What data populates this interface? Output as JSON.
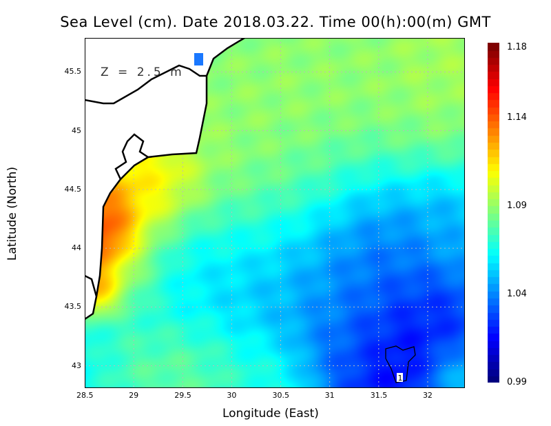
{
  "chart_data": {
    "type": "heatmap",
    "title": "Sea Level (cm). Date 2018.03.22. Time 00(h):00(m) GMT",
    "xlabel": "Longitude (East)",
    "ylabel": "Latitude (North)",
    "annotation": "Z = 2.5 m",
    "xlim": [
      28.5,
      32.38
    ],
    "ylim": [
      42.81,
      45.79
    ],
    "xticks": [
      "28.5",
      "29",
      "29.5",
      "30",
      "30.5",
      "31",
      "31.5",
      "32"
    ],
    "xtick_values": [
      28.5,
      29,
      29.5,
      30,
      30.5,
      31,
      31.5,
      32
    ],
    "yticks": [
      "43",
      "43.5",
      "44",
      "44.5",
      "45",
      "45.5"
    ],
    "ytick_values": [
      43,
      43.5,
      44,
      44.5,
      45,
      45.5
    ],
    "grid": true,
    "colorbar": {
      "min": 0.99,
      "max": 1.18,
      "ticks": [
        "0.99",
        "1.04",
        "1.09",
        "1.14",
        "1.18"
      ],
      "tick_values": [
        0.99,
        1.04,
        1.09,
        1.14,
        1.18
      ],
      "colormap": "jet"
    },
    "contour": {
      "label": "1",
      "center": [
        31.75,
        43.1
      ]
    },
    "base_value": 1.06,
    "field_features": [
      {
        "lon": 28.7,
        "lat": 44.05,
        "r": 0.18,
        "v": 1.18
      },
      {
        "lon": 28.75,
        "lat": 44.3,
        "r": 0.2,
        "v": 1.17
      },
      {
        "lon": 28.6,
        "lat": 43.7,
        "r": 0.15,
        "v": 1.15
      },
      {
        "lon": 29.0,
        "lat": 44.5,
        "r": 0.35,
        "v": 1.13
      },
      {
        "lon": 29.25,
        "lat": 44.65,
        "r": 0.3,
        "v": 1.12
      },
      {
        "lon": 28.9,
        "lat": 43.9,
        "r": 0.3,
        "v": 1.11
      },
      {
        "lon": 30.5,
        "lat": 45.2,
        "r": 1.0,
        "v": 1.095
      },
      {
        "lon": 31.6,
        "lat": 45.4,
        "r": 0.8,
        "v": 1.09
      },
      {
        "lon": 32.2,
        "lat": 45.6,
        "r": 0.4,
        "v": 1.1
      },
      {
        "lon": 30.0,
        "lat": 44.7,
        "r": 0.6,
        "v": 1.09
      },
      {
        "lon": 30.8,
        "lat": 44.6,
        "r": 0.4,
        "v": 1.085
      },
      {
        "lon": 31.4,
        "lat": 44.15,
        "r": 0.45,
        "v": 1.015
      },
      {
        "lon": 31.0,
        "lat": 44.0,
        "r": 0.55,
        "v": 1.035
      },
      {
        "lon": 30.2,
        "lat": 43.75,
        "r": 0.5,
        "v": 1.045
      },
      {
        "lon": 29.5,
        "lat": 43.8,
        "r": 0.4,
        "v": 1.055
      },
      {
        "lon": 31.75,
        "lat": 43.05,
        "r": 0.45,
        "v": 0.995
      },
      {
        "lon": 32.0,
        "lat": 43.35,
        "r": 0.4,
        "v": 1.02
      },
      {
        "lon": 31.2,
        "lat": 43.3,
        "r": 0.4,
        "v": 1.035
      },
      {
        "lon": 29.5,
        "lat": 43.0,
        "r": 0.4,
        "v": 1.085
      },
      {
        "lon": 30.3,
        "lat": 42.9,
        "r": 0.3,
        "v": 1.07
      },
      {
        "lon": 32.2,
        "lat": 44.3,
        "r": 0.3,
        "v": 1.04
      },
      {
        "lon": 32.3,
        "lat": 42.9,
        "r": 0.25,
        "v": 1.075
      }
    ]
  }
}
